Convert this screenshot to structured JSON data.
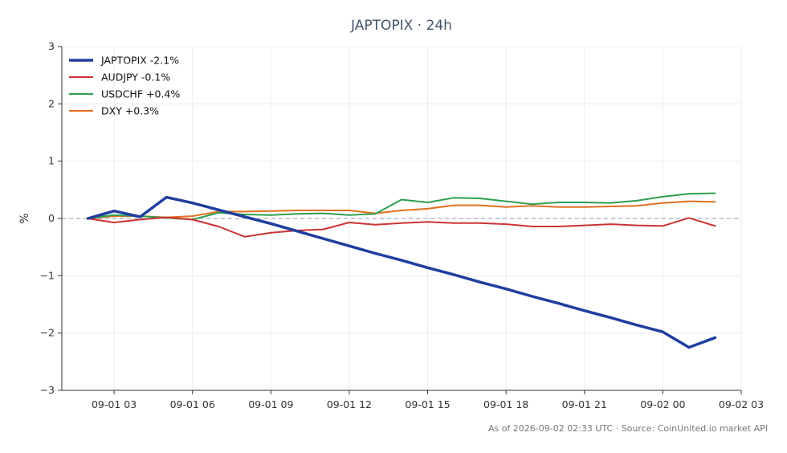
{
  "chart_data": {
    "type": "line",
    "title": "JAPTOPIX · 24h",
    "xlabel": "",
    "ylabel": "%",
    "ylim": [
      -3,
      3
    ],
    "yticks": [
      -3,
      -2,
      -1,
      0,
      1,
      2,
      3
    ],
    "ytick_labels": [
      "−3",
      "−2",
      "−1",
      "0",
      "1",
      "2",
      "3"
    ],
    "xlim": [
      "09-01 01:00",
      "09-02 03:00"
    ],
    "xticks": [
      "09-01 03:00",
      "09-01 06:00",
      "09-01 09:00",
      "09-01 12:00",
      "09-01 15:00",
      "09-01 18:00",
      "09-01 21:00",
      "09-02 00:00",
      "09-02 03:00"
    ],
    "xtick_labels": [
      "09-01 03",
      "09-01 06",
      "09-01 09",
      "09-01 12",
      "09-01 15",
      "09-01 18",
      "09-01 21",
      "09-02 00",
      "09-02 03"
    ],
    "x": [
      "09-01 02:00",
      "09-01 03:00",
      "09-01 04:00",
      "09-01 05:00",
      "09-01 06:00",
      "09-01 07:00",
      "09-01 08:00",
      "09-01 09:00",
      "09-01 10:00",
      "09-01 11:00",
      "09-01 12:00",
      "09-01 13:00",
      "09-01 14:00",
      "09-01 15:00",
      "09-01 16:00",
      "09-01 17:00",
      "09-01 18:00",
      "09-01 19:00",
      "09-01 20:00",
      "09-01 21:00",
      "09-01 22:00",
      "09-01 23:00",
      "09-02 00:00",
      "09-02 01:00",
      "09-02 02:00"
    ],
    "grid": true,
    "legend_position": "top-left",
    "reference_line": 0,
    "series": [
      {
        "name": "JAPTOPIX -2.1%",
        "color": "#1f3e9e",
        "width": 3.5,
        "values": [
          0.0,
          0.13,
          0.03,
          0.37,
          0.27,
          0.15,
          0.03,
          -0.09,
          -0.22,
          -0.35,
          -0.48,
          -0.61,
          -0.73,
          -0.86,
          -0.98,
          -1.11,
          -1.23,
          -1.36,
          -1.48,
          -1.61,
          -1.73,
          -1.86,
          -1.98,
          -2.25,
          -2.08
        ]
      },
      {
        "name": "AUDJPY -0.1%",
        "color": "#cc3333",
        "width": 2,
        "values": [
          0.0,
          -0.07,
          -0.02,
          0.02,
          -0.02,
          -0.14,
          -0.32,
          -0.25,
          -0.21,
          -0.19,
          -0.07,
          -0.11,
          -0.08,
          -0.06,
          -0.08,
          -0.08,
          -0.1,
          -0.14,
          -0.14,
          -0.12,
          -0.1,
          -0.12,
          -0.13,
          0.01,
          -0.13
        ]
      },
      {
        "name": "USDCHF +0.4%",
        "color": "#2e9e4f",
        "width": 2,
        "values": [
          0.0,
          0.06,
          0.04,
          0.01,
          -0.02,
          0.1,
          0.07,
          0.06,
          0.08,
          0.09,
          0.06,
          0.08,
          0.33,
          0.28,
          0.36,
          0.35,
          0.3,
          0.25,
          0.28,
          0.28,
          0.27,
          0.31,
          0.38,
          0.43,
          0.44
        ]
      },
      {
        "name": "DXY +0.3%",
        "color": "#e07020",
        "width": 2,
        "values": [
          0.0,
          0.04,
          0.04,
          0.02,
          0.04,
          0.12,
          0.12,
          0.13,
          0.14,
          0.14,
          0.14,
          0.09,
          0.14,
          0.17,
          0.23,
          0.23,
          0.2,
          0.22,
          0.2,
          0.2,
          0.21,
          0.22,
          0.27,
          0.3,
          0.29
        ]
      }
    ]
  },
  "footer": "As of 2026-09-02 02:33 UTC · Source: CoinUnited.io market API"
}
